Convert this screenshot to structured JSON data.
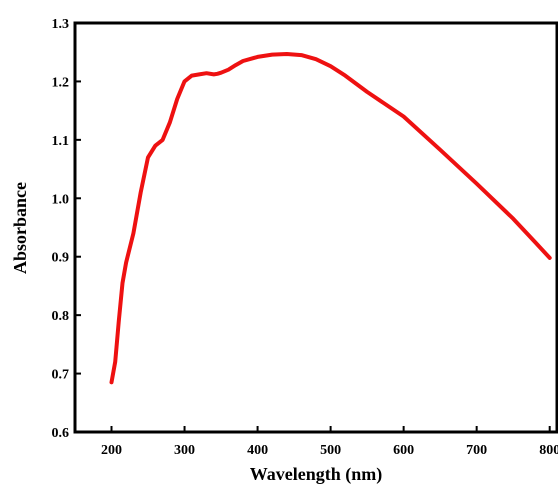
{
  "chart_data": {
    "type": "line",
    "title": "",
    "xlabel": "Wavelength (nm)",
    "ylabel": "Absorbance",
    "xlim": [
      150,
      810
    ],
    "ylim": [
      0.6,
      1.3
    ],
    "grid": false,
    "xticks": [
      "200",
      "300",
      "400",
      "500",
      "600",
      "700",
      "800"
    ],
    "yticks": [
      "0.6",
      "0.7",
      "0.8",
      "0.9",
      "1.0",
      "1.1",
      "1.2",
      "1.3"
    ],
    "colors": {
      "line": "#ee1111",
      "axis": "#000000"
    },
    "series": [
      {
        "x": [
          200,
          205,
          210,
          215,
          220,
          230,
          240,
          250,
          260,
          270,
          280,
          290,
          300,
          310,
          320,
          330,
          340,
          345,
          350,
          360,
          370,
          380,
          400,
          420,
          440,
          460,
          480,
          500,
          520,
          550,
          600,
          650,
          700,
          750,
          780,
          800
        ],
        "y": [
          0.685,
          0.72,
          0.79,
          0.855,
          0.89,
          0.94,
          1.01,
          1.07,
          1.09,
          1.1,
          1.13,
          1.17,
          1.2,
          1.21,
          1.212,
          1.214,
          1.212,
          1.213,
          1.215,
          1.22,
          1.228,
          1.235,
          1.242,
          1.246,
          1.247,
          1.245,
          1.238,
          1.226,
          1.21,
          1.182,
          1.14,
          1.083,
          1.025,
          0.965,
          0.925,
          0.898
        ]
      }
    ]
  }
}
